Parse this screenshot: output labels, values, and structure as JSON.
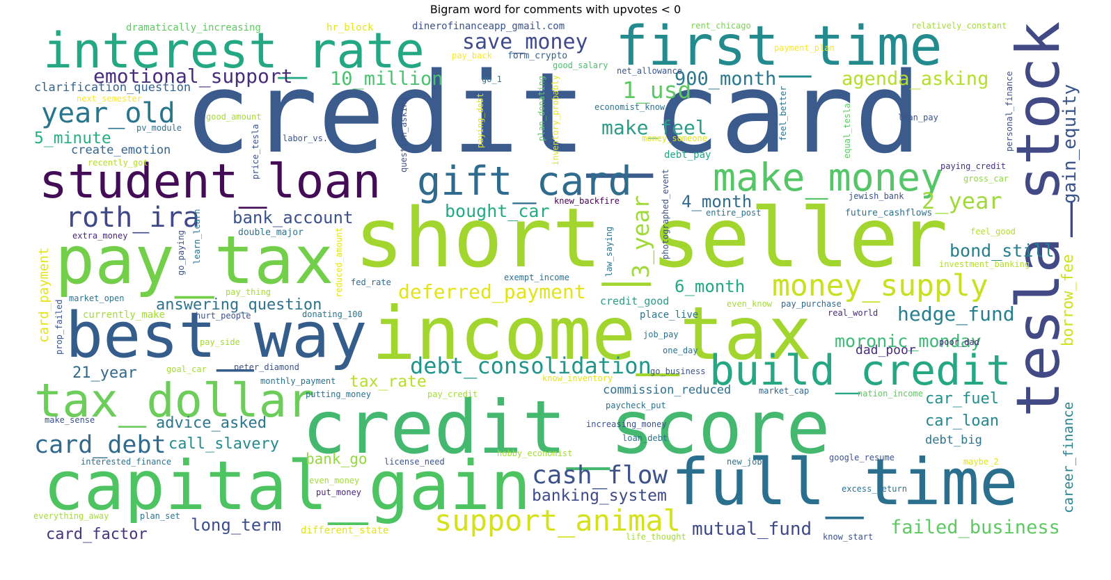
{
  "title": "Bigram word for comments with upvotes < 0",
  "words": [
    {
      "text": "credit_card",
      "color": "#3b5b8c",
      "vertical": false
    },
    {
      "text": "short_seller",
      "color": "#a2d62f",
      "vertical": false
    },
    {
      "text": "income_tax",
      "color": "#a2d62f",
      "vertical": false
    },
    {
      "text": "credit_score",
      "color": "#44b86f",
      "vertical": false
    },
    {
      "text": "capital_gain",
      "color": "#4ec361",
      "vertical": false
    },
    {
      "text": "full_time",
      "color": "#2a6f8e",
      "vertical": false
    },
    {
      "text": "tesla_stock",
      "color": "#424a86",
      "vertical": true
    },
    {
      "text": "pay_tax",
      "color": "#73cf4a",
      "vertical": false
    },
    {
      "text": "best_way",
      "color": "#355d8c",
      "vertical": false
    },
    {
      "text": "interest_rate",
      "color": "#23a883",
      "vertical": false
    },
    {
      "text": "first_time",
      "color": "#238b8d",
      "vertical": false
    },
    {
      "text": "student_loan",
      "color": "#440b57",
      "vertical": false
    },
    {
      "text": "tax_dollar",
      "color": "#6ccd5a",
      "vertical": false
    },
    {
      "text": "build_credit",
      "color": "#26a784",
      "vertical": false
    },
    {
      "text": "gift_card",
      "color": "#2f6b8e",
      "vertical": false
    },
    {
      "text": "make_money",
      "color": "#55c667",
      "vertical": false
    },
    {
      "text": "money_supply",
      "color": "#c8e020",
      "vertical": false
    },
    {
      "text": "support_animal",
      "color": "#d5e21a",
      "vertical": false
    },
    {
      "text": "roth_ira",
      "color": "#3f4888",
      "vertical": false
    },
    {
      "text": "year_old",
      "color": "#27768e",
      "vertical": false
    },
    {
      "text": "cash_flow",
      "color": "#3b528b",
      "vertical": false
    },
    {
      "text": "card_debt",
      "color": "#306a8e",
      "vertical": false
    },
    {
      "text": "debt_consolidation",
      "color": "#1f958b",
      "vertical": false
    },
    {
      "text": "3_year",
      "color": "#a0da39",
      "vertical": true
    },
    {
      "text": "save_money",
      "color": "#3e4a89",
      "vertical": false
    },
    {
      "text": "emotional_support",
      "color": "#472d7b",
      "vertical": false
    },
    {
      "text": "10_million",
      "color": "#4ac16d",
      "vertical": false
    },
    {
      "text": "1_usd",
      "color": "#5dc863",
      "vertical": false
    },
    {
      "text": "900_month",
      "color": "#2a788e",
      "vertical": false
    },
    {
      "text": "agenda_asking",
      "color": "#b5de2b",
      "vertical": false
    },
    {
      "text": "gain_equity",
      "color": "#3a548c",
      "vertical": true
    },
    {
      "text": "make_feel",
      "color": "#2a9c88",
      "vertical": false
    },
    {
      "text": "2_year",
      "color": "#9fda3a",
      "vertical": false
    },
    {
      "text": "4_month",
      "color": "#2f6c8e",
      "vertical": false
    },
    {
      "text": "bought_car",
      "color": "#24aa83",
      "vertical": false
    },
    {
      "text": "bank_account",
      "color": "#3b518b",
      "vertical": false
    },
    {
      "text": "bond_still",
      "color": "#277f8e",
      "vertical": false
    },
    {
      "text": "deferred_payment",
      "color": "#e2e418",
      "vertical": false
    },
    {
      "text": "6_month",
      "color": "#22a785",
      "vertical": false
    },
    {
      "text": "answering_question",
      "color": "#2c728e",
      "vertical": false
    },
    {
      "text": "hedge_fund",
      "color": "#27808e",
      "vertical": false
    },
    {
      "text": "moronic_monday",
      "color": "#3bbb75",
      "vertical": false
    },
    {
      "text": "dad_poor",
      "color": "#472c7a",
      "vertical": false
    },
    {
      "text": "borrow_fee",
      "color": "#cde11d",
      "vertical": true
    },
    {
      "text": "5_minute",
      "color": "#28ae80",
      "vertical": false
    },
    {
      "text": "create_emotion",
      "color": "#33638d",
      "vertical": false
    },
    {
      "text": "clarification_question",
      "color": "#33638d",
      "vertical": false
    },
    {
      "text": "21_year",
      "color": "#31688e",
      "vertical": false
    },
    {
      "text": "tax_rate",
      "color": "#b8de29",
      "vertical": false
    },
    {
      "text": "advice_asked",
      "color": "#2a768e",
      "vertical": false
    },
    {
      "text": "call_slavery",
      "color": "#228c8d",
      "vertical": false
    },
    {
      "text": "career_finance",
      "color": "#25848e",
      "vertical": true
    },
    {
      "text": "car_fuel",
      "color": "#218f8d",
      "vertical": false
    },
    {
      "text": "car_loan",
      "color": "#24878e",
      "vertical": false
    },
    {
      "text": "debt_big",
      "color": "#2b748e",
      "vertical": false
    },
    {
      "text": "card_payment",
      "color": "#e5e419",
      "vertical": true
    },
    {
      "text": "banking_system",
      "color": "#3e4989",
      "vertical": false
    },
    {
      "text": "long_term",
      "color": "#3d4e8a",
      "vertical": false
    },
    {
      "text": "mutual_fund",
      "color": "#3e4a89",
      "vertical": false
    },
    {
      "text": "failed_business",
      "color": "#5ec962",
      "vertical": false
    },
    {
      "text": "card_factor",
      "color": "#46337f",
      "vertical": false
    },
    {
      "text": "bank_go",
      "color": "#95d840",
      "vertical": false
    },
    {
      "text": "commission_reduced",
      "color": "#2e6f8e",
      "vertical": false
    },
    {
      "text": "dramatically_increasing",
      "color": "#5ec962",
      "vertical": false
    },
    {
      "text": "hr_block",
      "color": "#e2e418",
      "vertical": false
    },
    {
      "text": "dinerofinanceapp_gmail.com",
      "color": "#3b528b",
      "vertical": false
    },
    {
      "text": "rent_chicago",
      "color": "#7ad151",
      "vertical": false
    },
    {
      "text": "relatively_constant",
      "color": "#a5db36",
      "vertical": false
    },
    {
      "text": "payment_plan",
      "color": "#fde725",
      "vertical": false
    },
    {
      "text": "pay_back",
      "color": "#fde725",
      "vertical": false
    },
    {
      "text": "form_crypto",
      "color": "#355f8d",
      "vertical": false
    },
    {
      "text": "good_salary",
      "color": "#4ac16d",
      "vertical": false
    },
    {
      "text": "net_allowance",
      "color": "#3a548c",
      "vertical": false
    },
    {
      "text": "go_1",
      "color": "#2c738e",
      "vertical": false
    },
    {
      "text": "next_semester",
      "color": "#fde725",
      "vertical": false
    },
    {
      "text": "economist_know",
      "color": "#2c728e",
      "vertical": false
    },
    {
      "text": "loan_pay",
      "color": "#3b528b",
      "vertical": false
    },
    {
      "text": "good_amount",
      "color": "#a5db36",
      "vertical": false
    },
    {
      "text": "pv_module",
      "color": "#2c728e",
      "vertical": false
    },
    {
      "text": "labor_vs.",
      "color": "#3b528b",
      "vertical": false
    },
    {
      "text": "money_someone",
      "color": "#e2e418",
      "vertical": false
    },
    {
      "text": "debt_pay",
      "color": "#20a486",
      "vertical": false
    },
    {
      "text": "recently_got",
      "color": "#b5de2b",
      "vertical": false
    },
    {
      "text": "paying_credit",
      "color": "#46327e",
      "vertical": false
    },
    {
      "text": "gross_car",
      "color": "#8fd744",
      "vertical": false
    },
    {
      "text": "knew_backfire",
      "color": "#440154",
      "vertical": false
    },
    {
      "text": "jewish_bank",
      "color": "#3b528b",
      "vertical": false
    },
    {
      "text": "entire_post",
      "color": "#2c728e",
      "vertical": false
    },
    {
      "text": "future_cashflows",
      "color": "#2c728e",
      "vertical": false
    },
    {
      "text": "extra_money",
      "color": "#482878",
      "vertical": false
    },
    {
      "text": "double_major",
      "color": "#2c728e",
      "vertical": false
    },
    {
      "text": "feel_good",
      "color": "#b5de2b",
      "vertical": false
    },
    {
      "text": "investment_banking",
      "color": "#b5de2b",
      "vertical": false
    },
    {
      "text": "exempt_income",
      "color": "#2c728e",
      "vertical": false
    },
    {
      "text": "fed_rate",
      "color": "#31688e",
      "vertical": false
    },
    {
      "text": "pay_thing",
      "color": "#a5db36",
      "vertical": false
    },
    {
      "text": "market_open",
      "color": "#2c728e",
      "vertical": false
    },
    {
      "text": "credit_good",
      "color": "#2a9c88",
      "vertical": false
    },
    {
      "text": "even_know",
      "color": "#a5db36",
      "vertical": false
    },
    {
      "text": "pay_purchase",
      "color": "#31688e",
      "vertical": false
    },
    {
      "text": "real_world",
      "color": "#482878",
      "vertical": false
    },
    {
      "text": "currently_make",
      "color": "#a5db36",
      "vertical": false
    },
    {
      "text": "hurt_people",
      "color": "#3b528b",
      "vertical": false
    },
    {
      "text": "donating_100",
      "color": "#2c728e",
      "vertical": false
    },
    {
      "text": "place_live",
      "color": "#2c728e",
      "vertical": false
    },
    {
      "text": "job_pay",
      "color": "#2c728e",
      "vertical": false
    },
    {
      "text": "poor_dad",
      "color": "#482878",
      "vertical": false
    },
    {
      "text": "pay_side",
      "color": "#a5db36",
      "vertical": false
    },
    {
      "text": "one_day",
      "color": "#2c728e",
      "vertical": false
    },
    {
      "text": "goal_car",
      "color": "#a5db36",
      "vertical": false
    },
    {
      "text": "peter_diamond",
      "color": "#3b528b",
      "vertical": false
    },
    {
      "text": "go_business",
      "color": "#3b528b",
      "vertical": false
    },
    {
      "text": "know_inventory",
      "color": "#e2e418",
      "vertical": false
    },
    {
      "text": "monthly_payment",
      "color": "#2c728e",
      "vertical": false
    },
    {
      "text": "putting_money",
      "color": "#2c728e",
      "vertical": false
    },
    {
      "text": "pay_credit",
      "color": "#a5db36",
      "vertical": false
    },
    {
      "text": "market_cap",
      "color": "#31688e",
      "vertical": false
    },
    {
      "text": "nation_income",
      "color": "#5ec962",
      "vertical": false
    },
    {
      "text": "paycheck_put",
      "color": "#2c728e",
      "vertical": false
    },
    {
      "text": "make_sense",
      "color": "#3b528b",
      "vertical": false
    },
    {
      "text": "increasing_money",
      "color": "#3b528b",
      "vertical": false
    },
    {
      "text": "loan_debt",
      "color": "#2c728e",
      "vertical": false
    },
    {
      "text": "interested_finance",
      "color": "#2c728e",
      "vertical": false
    },
    {
      "text": "hobby_economist",
      "color": "#a5db36",
      "vertical": false
    },
    {
      "text": "license_need",
      "color": "#3b528b",
      "vertical": false
    },
    {
      "text": "new_job",
      "color": "#2c728e",
      "vertical": false
    },
    {
      "text": "google_resume",
      "color": "#3b528b",
      "vertical": false
    },
    {
      "text": "maybe_2",
      "color": "#e2e418",
      "vertical": false
    },
    {
      "text": "even_money",
      "color": "#a5db36",
      "vertical": false
    },
    {
      "text": "put_money",
      "color": "#482878",
      "vertical": false
    },
    {
      "text": "excess_return",
      "color": "#2c728e",
      "vertical": false
    },
    {
      "text": "everything_away",
      "color": "#a5db36",
      "vertical": false
    },
    {
      "text": "plan_set",
      "color": "#2c728e",
      "vertical": false
    },
    {
      "text": "different_state",
      "color": "#e2e418",
      "vertical": false
    },
    {
      "text": "life_thought",
      "color": "#a5db36",
      "vertical": false
    },
    {
      "text": "know_start",
      "color": "#3b528b",
      "vertical": false
    },
    {
      "text": "paying_debt",
      "color": "#e2e418",
      "vertical": true
    },
    {
      "text": "plan_donating",
      "color": "#5ec962",
      "vertical": true
    },
    {
      "text": "inventory_probably",
      "color": "#e2e418",
      "vertical": true
    },
    {
      "text": "question_asking",
      "color": "#3b528b",
      "vertical": true
    },
    {
      "text": "price_tesla",
      "color": "#3b528b",
      "vertical": true
    },
    {
      "text": "feel_better",
      "color": "#2c728e",
      "vertical": true
    },
    {
      "text": "equal_tesla",
      "color": "#5ec962",
      "vertical": true
    },
    {
      "text": "personal_finance",
      "color": "#3b528b",
      "vertical": true
    },
    {
      "text": "photographed_event",
      "color": "#3b528b",
      "vertical": true
    },
    {
      "text": "law_saying",
      "color": "#2c728e",
      "vertical": true
    },
    {
      "text": "go_paying",
      "color": "#3b528b",
      "vertical": true
    },
    {
      "text": "learn_learn",
      "color": "#2c728e",
      "vertical": true
    },
    {
      "text": "reduced_amount",
      "color": "#e2e418",
      "vertical": true
    },
    {
      "text": "prop_failed",
      "color": "#3b528b",
      "vertical": true
    }
  ]
}
